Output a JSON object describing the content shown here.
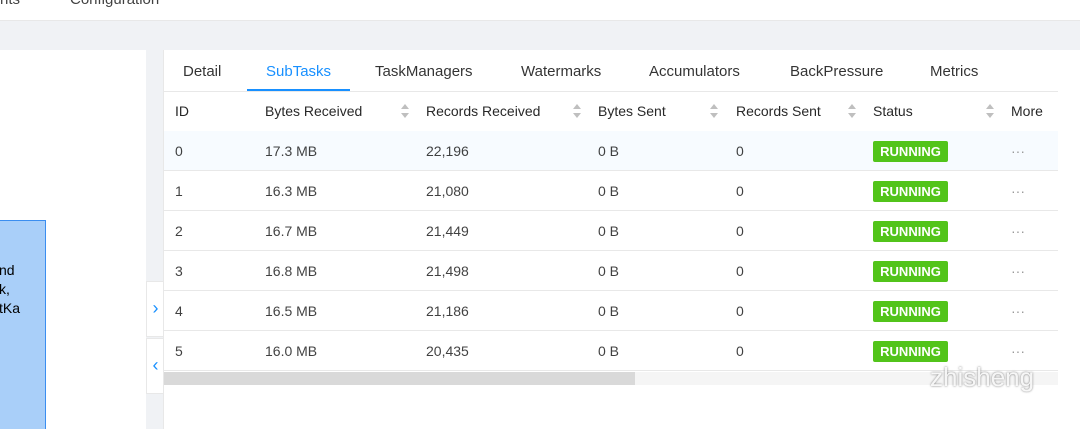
{
  "top_nav": [
    "nts",
    "Configuration"
  ],
  "node_text": [
    "nd",
    "k,",
    "tKa"
  ],
  "tabs": [
    "Detail",
    "SubTasks",
    "TaskManagers",
    "Watermarks",
    "Accumulators",
    "BackPressure",
    "Metrics"
  ],
  "active_tab": "SubTasks",
  "table": {
    "headers": [
      "ID",
      "Bytes Received",
      "Records Received",
      "Bytes Sent",
      "Records Sent",
      "Status",
      "More"
    ],
    "rows": [
      [
        "0",
        "17.3 MB",
        "22,196",
        "0 B",
        "0",
        "RUNNING",
        "···"
      ],
      [
        "1",
        "16.3 MB",
        "21,080",
        "0 B",
        "0",
        "RUNNING",
        "···"
      ],
      [
        "2",
        "16.7 MB",
        "21,449",
        "0 B",
        "0",
        "RUNNING",
        "···"
      ],
      [
        "3",
        "16.8 MB",
        "21,498",
        "0 B",
        "0",
        "RUNNING",
        "···"
      ],
      [
        "4",
        "16.5 MB",
        "21,186",
        "0 B",
        "0",
        "RUNNING",
        "···"
      ],
      [
        "5",
        "16.0 MB",
        "20,435",
        "0 B",
        "0",
        "RUNNING",
        "···"
      ]
    ]
  },
  "watermark": "zhisheng"
}
